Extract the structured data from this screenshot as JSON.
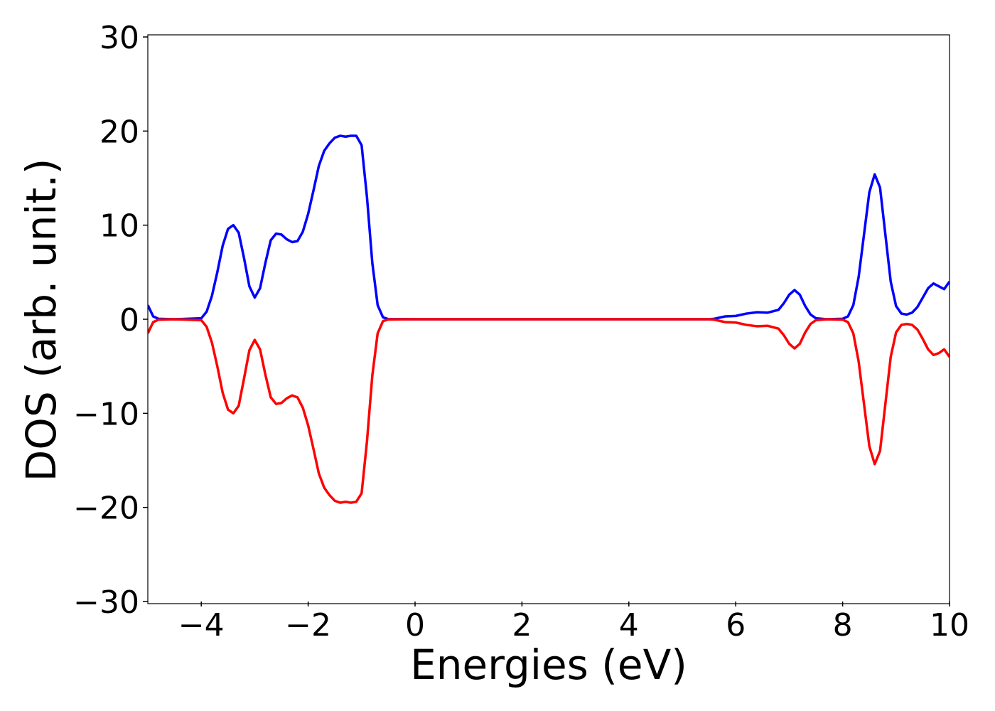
{
  "chart_data": {
    "type": "line",
    "xlabel": "Energies (eV)",
    "ylabel": "DOS (arb. unit.)",
    "x": [
      -5,
      -4.9,
      -4.8,
      -4.5,
      -4.0,
      -3.9,
      -3.8,
      -3.7,
      -3.6,
      -3.5,
      -3.4,
      -3.3,
      -3.2,
      -3.1,
      -3.0,
      -2.9,
      -2.8,
      -2.7,
      -2.6,
      -2.5,
      -2.4,
      -2.3,
      -2.2,
      -2.1,
      -2.0,
      -1.9,
      -1.8,
      -1.7,
      -1.6,
      -1.5,
      -1.4,
      -1.3,
      -1.2,
      -1.1,
      -1.0,
      -0.9,
      -0.8,
      -0.7,
      -0.6,
      -0.5,
      0,
      5.5,
      5.6,
      5.8,
      6.0,
      6.2,
      6.4,
      6.6,
      6.8,
      6.9,
      7.0,
      7.1,
      7.2,
      7.3,
      7.4,
      7.5,
      7.7,
      8.0,
      8.1,
      8.2,
      8.3,
      8.4,
      8.5,
      8.6,
      8.7,
      8.8,
      8.9,
      9.0,
      9.1,
      9.2,
      9.3,
      9.4,
      9.5,
      9.6,
      9.7,
      9.8,
      9.9,
      10
    ],
    "series": [
      {
        "color": "#0000ff",
        "values": [
          1.5,
          0.3,
          0.05,
          0,
          0.1,
          0.8,
          2.5,
          5,
          7.8,
          9.6,
          10,
          9.2,
          6.5,
          3.5,
          2.3,
          3.3,
          6,
          8.4,
          9.1,
          9,
          8.5,
          8.2,
          8.3,
          9.3,
          11.2,
          13.7,
          16.3,
          17.9,
          18.7,
          19.3,
          19.5,
          19.4,
          19.5,
          19.5,
          18.5,
          13,
          6,
          1.5,
          0.2,
          0.02,
          0,
          0,
          0.05,
          0.3,
          0.35,
          0.6,
          0.75,
          0.7,
          1.0,
          1.7,
          2.6,
          3.1,
          2.6,
          1.4,
          0.5,
          0.1,
          0,
          0.05,
          0.3,
          1.5,
          4.5,
          9,
          13.5,
          15.4,
          14,
          9,
          4,
          1.4,
          0.6,
          0.5,
          0.7,
          1.3,
          2.3,
          3.3,
          3.8,
          3.5,
          3.2,
          4.0
        ]
      },
      {
        "color": "#ff0000",
        "values": [
          -1.5,
          -0.3,
          -0.05,
          0,
          -0.1,
          -0.8,
          -2.5,
          -5,
          -7.8,
          -9.6,
          -10,
          -9.2,
          -6.3,
          -3.3,
          -2.2,
          -3.2,
          -5.9,
          -8.3,
          -9.0,
          -8.9,
          -8.4,
          -8.1,
          -8.3,
          -9.4,
          -11.3,
          -13.8,
          -16.4,
          -17.9,
          -18.7,
          -19.3,
          -19.5,
          -19.4,
          -19.5,
          -19.4,
          -18.5,
          -13,
          -6,
          -1.5,
          -0.2,
          -0.02,
          0,
          0,
          -0.05,
          -0.3,
          -0.35,
          -0.6,
          -0.75,
          -0.7,
          -1.0,
          -1.7,
          -2.6,
          -3.1,
          -2.6,
          -1.4,
          -0.5,
          -0.1,
          0,
          -0.05,
          -0.3,
          -1.5,
          -4.5,
          -9,
          -13.5,
          -15.4,
          -14,
          -9,
          -4,
          -1.4,
          -0.6,
          -0.5,
          -0.6,
          -1.1,
          -2.1,
          -3.2,
          -3.8,
          -3.6,
          -3.2,
          -4.0
        ]
      }
    ],
    "xlim": [
      -5,
      10
    ],
    "xticks": [
      {
        "value": -4,
        "label": "−4"
      },
      {
        "value": -2,
        "label": "−2"
      },
      0,
      2,
      4,
      6,
      8,
      10
    ],
    "ylim": [
      -30,
      30
    ],
    "yticks": [
      {
        "value": -30,
        "label": "−30"
      },
      {
        "value": -20,
        "label": "−20"
      },
      {
        "value": -10,
        "label": "−10"
      },
      0,
      10,
      20,
      30
    ],
    "grid": false
  }
}
